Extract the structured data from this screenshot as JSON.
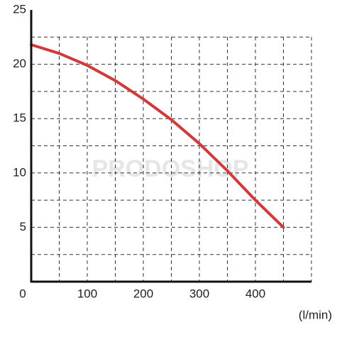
{
  "chart_data": {
    "type": "line",
    "watermark": "PRODOSHOP",
    "x_label": "(l/min)",
    "x": [
      0,
      50,
      100,
      150,
      200,
      250,
      300,
      350,
      400,
      450
    ],
    "series": [
      {
        "color": "#d03a3a",
        "values": [
          21.8,
          21,
          19.9,
          18.5,
          16.8,
          14.9,
          12.7,
          10.2,
          7.5,
          5
        ]
      }
    ],
    "xlim": [
      0,
      500
    ],
    "ylim": [
      0,
      25
    ],
    "xticks": [
      0,
      100,
      200,
      300,
      400
    ],
    "yticks": [
      5,
      10,
      15,
      20,
      25
    ],
    "xgrid": [
      50,
      100,
      150,
      200,
      250,
      300,
      350,
      400,
      450,
      500
    ],
    "ygrid": [
      2.5,
      5,
      7.5,
      10,
      12.5,
      15,
      17.5,
      20,
      22.5
    ],
    "grid": true
  }
}
